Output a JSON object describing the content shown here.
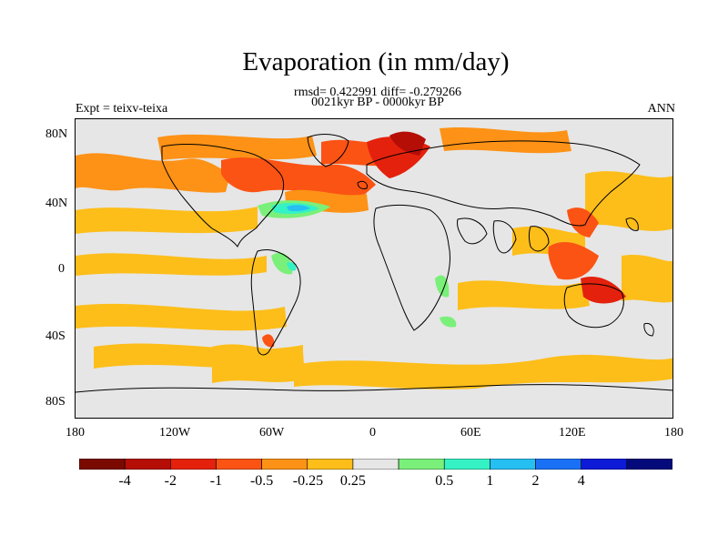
{
  "header": {
    "title": "Evaporation (in mm/day)",
    "stats_line": "rmsd= 0.422991 diff= -0.279266",
    "period_line": "0021kyr BP - 0000kyr BP",
    "experiment": "Expt = teixv-teixa",
    "season": "ANN"
  },
  "map": {
    "background_color": "#e6e6e6",
    "lat_ticks": [
      "80N",
      "40N",
      "0",
      "40S",
      "80S"
    ],
    "lon_ticks": [
      "180",
      "120W",
      "60W",
      "0",
      "60E",
      "120E",
      "180"
    ],
    "regions": [
      {
        "name": "north-atlantic-high-latitude",
        "level": "-1",
        "color": "#e8421a"
      },
      {
        "name": "nordic-seas",
        "level": "-2",
        "color": "#d6200e"
      },
      {
        "name": "north-pacific",
        "level": "-0.5",
        "color": "#f98620"
      },
      {
        "name": "gulf-stream",
        "level": "0.5",
        "color": "#58f7b8"
      },
      {
        "name": "gulf-stream-core",
        "level": "2",
        "color": "#19aaf0"
      },
      {
        "name": "western-pacific",
        "level": "-1",
        "color": "#e8421a"
      },
      {
        "name": "tropical-bands",
        "level": "-0.25",
        "color": "#fdb414"
      }
    ]
  },
  "colorbar": {
    "colors": [
      "#7a0a00",
      "#b50e06",
      "#e4210c",
      "#fb5314",
      "#fd9216",
      "#fdbe1a",
      "#e6e6e6",
      "#7af07a",
      "#34f2c4",
      "#26bff2",
      "#1b71f6",
      "#0d1ad6",
      "#050a7a"
    ],
    "labels": [
      "-4",
      "-2",
      "-1",
      "-0.5",
      "-0.25",
      "0.25",
      "0.5",
      "1",
      "2",
      "4"
    ]
  }
}
